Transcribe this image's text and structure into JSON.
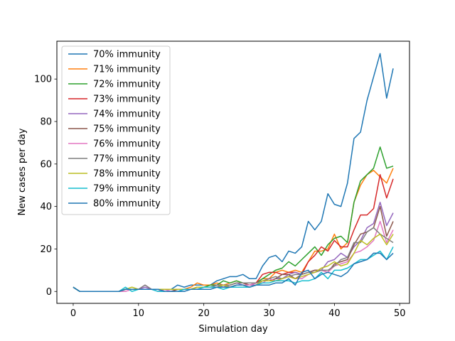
{
  "chart_data": {
    "type": "line",
    "title": "",
    "xlabel": "Simulation day",
    "ylabel": "New cases per day",
    "xlim": [
      -2.5,
      51.5
    ],
    "ylim": [
      -5.6,
      117.8
    ],
    "xticks": [
      0,
      10,
      20,
      30,
      40,
      50
    ],
    "yticks": [
      0,
      20,
      40,
      60,
      80,
      100
    ],
    "grid": false,
    "legend_position": "upper-left",
    "x": [
      0,
      1,
      2,
      3,
      4,
      5,
      6,
      7,
      8,
      9,
      10,
      11,
      12,
      13,
      14,
      15,
      16,
      17,
      18,
      19,
      20,
      21,
      22,
      23,
      24,
      25,
      26,
      27,
      28,
      29,
      30,
      31,
      32,
      33,
      34,
      35,
      36,
      37,
      38,
      39,
      40,
      41,
      42,
      43,
      44,
      45,
      46,
      47,
      48,
      49
    ],
    "series": [
      {
        "name": "70% immunity",
        "color": "#1f77b4",
        "values": [
          2,
          0,
          0,
          0,
          0,
          0,
          0,
          0,
          1,
          1,
          1,
          1,
          1,
          1,
          1,
          1,
          3,
          2,
          3,
          3,
          3,
          3,
          5,
          6,
          7,
          7,
          8,
          6,
          6,
          12,
          16,
          17,
          14,
          19,
          18,
          21,
          33,
          29,
          33,
          46,
          41,
          40,
          51,
          72,
          75,
          90,
          101,
          112,
          91,
          105
        ]
      },
      {
        "name": "71% immunity",
        "color": "#ff7f0e",
        "values": [
          2,
          0,
          0,
          0,
          0,
          0,
          0,
          0,
          1,
          1,
          1,
          1,
          1,
          1,
          1,
          1,
          1,
          1,
          2,
          4,
          3,
          3,
          4,
          3,
          4,
          5,
          4,
          3,
          4,
          6,
          6,
          9,
          10,
          9,
          10,
          9,
          14,
          19,
          19,
          20,
          27,
          20,
          23,
          42,
          50,
          55,
          57,
          54,
          51,
          58
        ]
      },
      {
        "name": "72% immunity",
        "color": "#2ca02c",
        "values": [
          2,
          0,
          0,
          0,
          0,
          0,
          0,
          0,
          1,
          1,
          1,
          1,
          1,
          1,
          0,
          0,
          1,
          1,
          1,
          2,
          2,
          3,
          3,
          5,
          4,
          5,
          4,
          4,
          4,
          6,
          8,
          10,
          11,
          14,
          12,
          15,
          18,
          21,
          17,
          22,
          25,
          26,
          23,
          42,
          52,
          55,
          58,
          68,
          58,
          59
        ]
      },
      {
        "name": "73% immunity",
        "color": "#d62728",
        "values": [
          2,
          0,
          0,
          0,
          0,
          0,
          0,
          0,
          1,
          1,
          1,
          1,
          1,
          1,
          1,
          1,
          1,
          1,
          1,
          2,
          2,
          2,
          3,
          3,
          3,
          4,
          4,
          3,
          4,
          8,
          9,
          9,
          8,
          9,
          9,
          8,
          14,
          17,
          21,
          19,
          24,
          21,
          21,
          29,
          36,
          36,
          39,
          55,
          44,
          53
        ]
      },
      {
        "name": "74% immunity",
        "color": "#9467bd",
        "values": [
          2,
          0,
          0,
          0,
          0,
          0,
          0,
          0,
          1,
          1,
          1,
          2,
          1,
          1,
          0,
          0,
          1,
          1,
          1,
          1,
          2,
          2,
          3,
          2,
          3,
          4,
          3,
          3,
          3,
          5,
          5,
          6,
          6,
          8,
          9,
          8,
          9,
          10,
          10,
          14,
          15,
          18,
          16,
          21,
          24,
          30,
          32,
          42,
          31,
          37
        ]
      },
      {
        "name": "75% immunity",
        "color": "#8c564b",
        "values": [
          2,
          0,
          0,
          0,
          0,
          0,
          0,
          0,
          1,
          1,
          1,
          1,
          1,
          1,
          1,
          0,
          1,
          1,
          1,
          1,
          2,
          2,
          3,
          3,
          3,
          4,
          4,
          3,
          4,
          5,
          5,
          6,
          8,
          8,
          6,
          8,
          9,
          10,
          10,
          9,
          13,
          14,
          15,
          22,
          27,
          28,
          30,
          40,
          26,
          33
        ]
      },
      {
        "name": "76% immunity",
        "color": "#e377c2",
        "values": [
          2,
          0,
          0,
          0,
          0,
          0,
          0,
          0,
          0,
          1,
          1,
          3,
          1,
          0,
          1,
          0,
          0,
          1,
          1,
          1,
          2,
          2,
          3,
          3,
          2,
          3,
          3,
          3,
          4,
          4,
          6,
          5,
          6,
          7,
          6,
          6,
          8,
          9,
          10,
          9,
          12,
          13,
          14,
          18,
          19,
          21,
          24,
          33,
          23,
          29
        ]
      },
      {
        "name": "77% immunity",
        "color": "#7f7f7f",
        "values": [
          2,
          0,
          0,
          0,
          0,
          0,
          0,
          0,
          1,
          1,
          1,
          3,
          1,
          1,
          1,
          1,
          1,
          1,
          1,
          2,
          2,
          2,
          3,
          3,
          3,
          4,
          4,
          4,
          4,
          5,
          6,
          7,
          6,
          7,
          8,
          8,
          9,
          9,
          10,
          10,
          12,
          15,
          16,
          23,
          23,
          28,
          30,
          27,
          25,
          23
        ]
      },
      {
        "name": "78% immunity",
        "color": "#bcbd22",
        "values": [
          2,
          0,
          0,
          0,
          0,
          0,
          0,
          0,
          1,
          2,
          1,
          1,
          1,
          1,
          1,
          1,
          1,
          1,
          1,
          2,
          2,
          2,
          2,
          3,
          2,
          3,
          3,
          2,
          3,
          5,
          5,
          5,
          6,
          7,
          6,
          7,
          8,
          9,
          11,
          12,
          14,
          12,
          13,
          18,
          24,
          22,
          25,
          27,
          22,
          27
        ]
      },
      {
        "name": "79% immunity",
        "color": "#17becf",
        "values": [
          2,
          0,
          0,
          0,
          0,
          0,
          0,
          0,
          2,
          0,
          1,
          1,
          1,
          0,
          0,
          0,
          0,
          1,
          1,
          1,
          2,
          2,
          2,
          1,
          2,
          2,
          2,
          2,
          3,
          4,
          4,
          5,
          5,
          5,
          4,
          5,
          5,
          6,
          9,
          6,
          10,
          10,
          11,
          13,
          15,
          15,
          17,
          19,
          15,
          21
        ]
      },
      {
        "name": "80% immunity",
        "color": "#1f77b4",
        "values": [
          2,
          0,
          0,
          0,
          0,
          0,
          0,
          0,
          1,
          1,
          1,
          1,
          1,
          1,
          0,
          0,
          0,
          0,
          1,
          1,
          1,
          1,
          2,
          2,
          2,
          3,
          3,
          2,
          3,
          3,
          3,
          4,
          4,
          6,
          3,
          9,
          10,
          6,
          8,
          9,
          8,
          7,
          9,
          13,
          14,
          15,
          18,
          18,
          15,
          18
        ]
      }
    ]
  }
}
